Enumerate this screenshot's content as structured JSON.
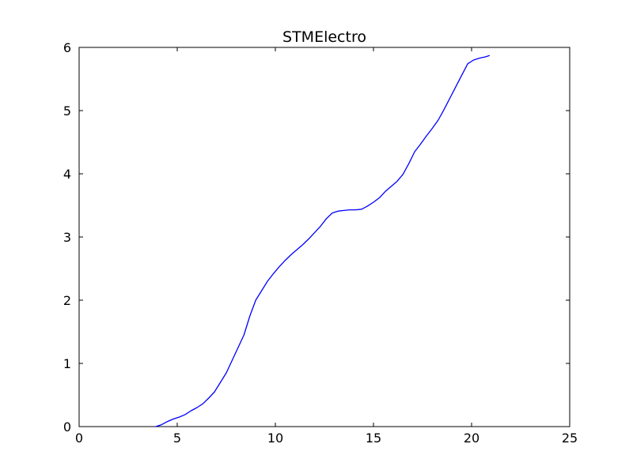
{
  "chart_data": {
    "type": "line",
    "title": "STMElectro",
    "xlabel": "",
    "ylabel": "",
    "xlim": [
      0,
      25
    ],
    "ylim": [
      0,
      6
    ],
    "x_ticks": [
      0,
      5,
      10,
      15,
      20,
      25
    ],
    "y_ticks": [
      0,
      1,
      2,
      3,
      4,
      5,
      6
    ],
    "grid": false,
    "legend": "none",
    "series": [
      {
        "color": "#0000ff",
        "x": [
          3.9,
          4.2,
          4.5,
          4.8,
          5.1,
          5.4,
          5.7,
          6.0,
          6.3,
          6.6,
          6.9,
          7.2,
          7.5,
          7.8,
          8.1,
          8.4,
          8.7,
          9.0,
          9.3,
          9.6,
          9.9,
          10.2,
          10.5,
          10.8,
          11.1,
          11.4,
          11.7,
          12.0,
          12.3,
          12.6,
          12.9,
          13.2,
          13.5,
          13.8,
          14.1,
          14.4,
          14.7,
          15.0,
          15.3,
          15.6,
          15.9,
          16.2,
          16.5,
          16.8,
          17.1,
          17.4,
          17.7,
          18.0,
          18.3,
          18.6,
          18.9,
          19.2,
          19.5,
          19.8,
          20.1,
          20.4,
          20.7,
          20.9
        ],
        "y": [
          0.0,
          0.03,
          0.08,
          0.12,
          0.15,
          0.19,
          0.25,
          0.3,
          0.36,
          0.45,
          0.55,
          0.7,
          0.85,
          1.05,
          1.25,
          1.45,
          1.75,
          2.0,
          2.15,
          2.3,
          2.42,
          2.53,
          2.63,
          2.72,
          2.8,
          2.88,
          2.97,
          3.07,
          3.17,
          3.29,
          3.38,
          3.41,
          3.42,
          3.43,
          3.43,
          3.44,
          3.49,
          3.55,
          3.62,
          3.72,
          3.8,
          3.88,
          3.99,
          4.16,
          4.35,
          4.47,
          4.6,
          4.72,
          4.85,
          5.02,
          5.2,
          5.38,
          5.56,
          5.74,
          5.8,
          5.83,
          5.85,
          5.87
        ]
      }
    ]
  }
}
